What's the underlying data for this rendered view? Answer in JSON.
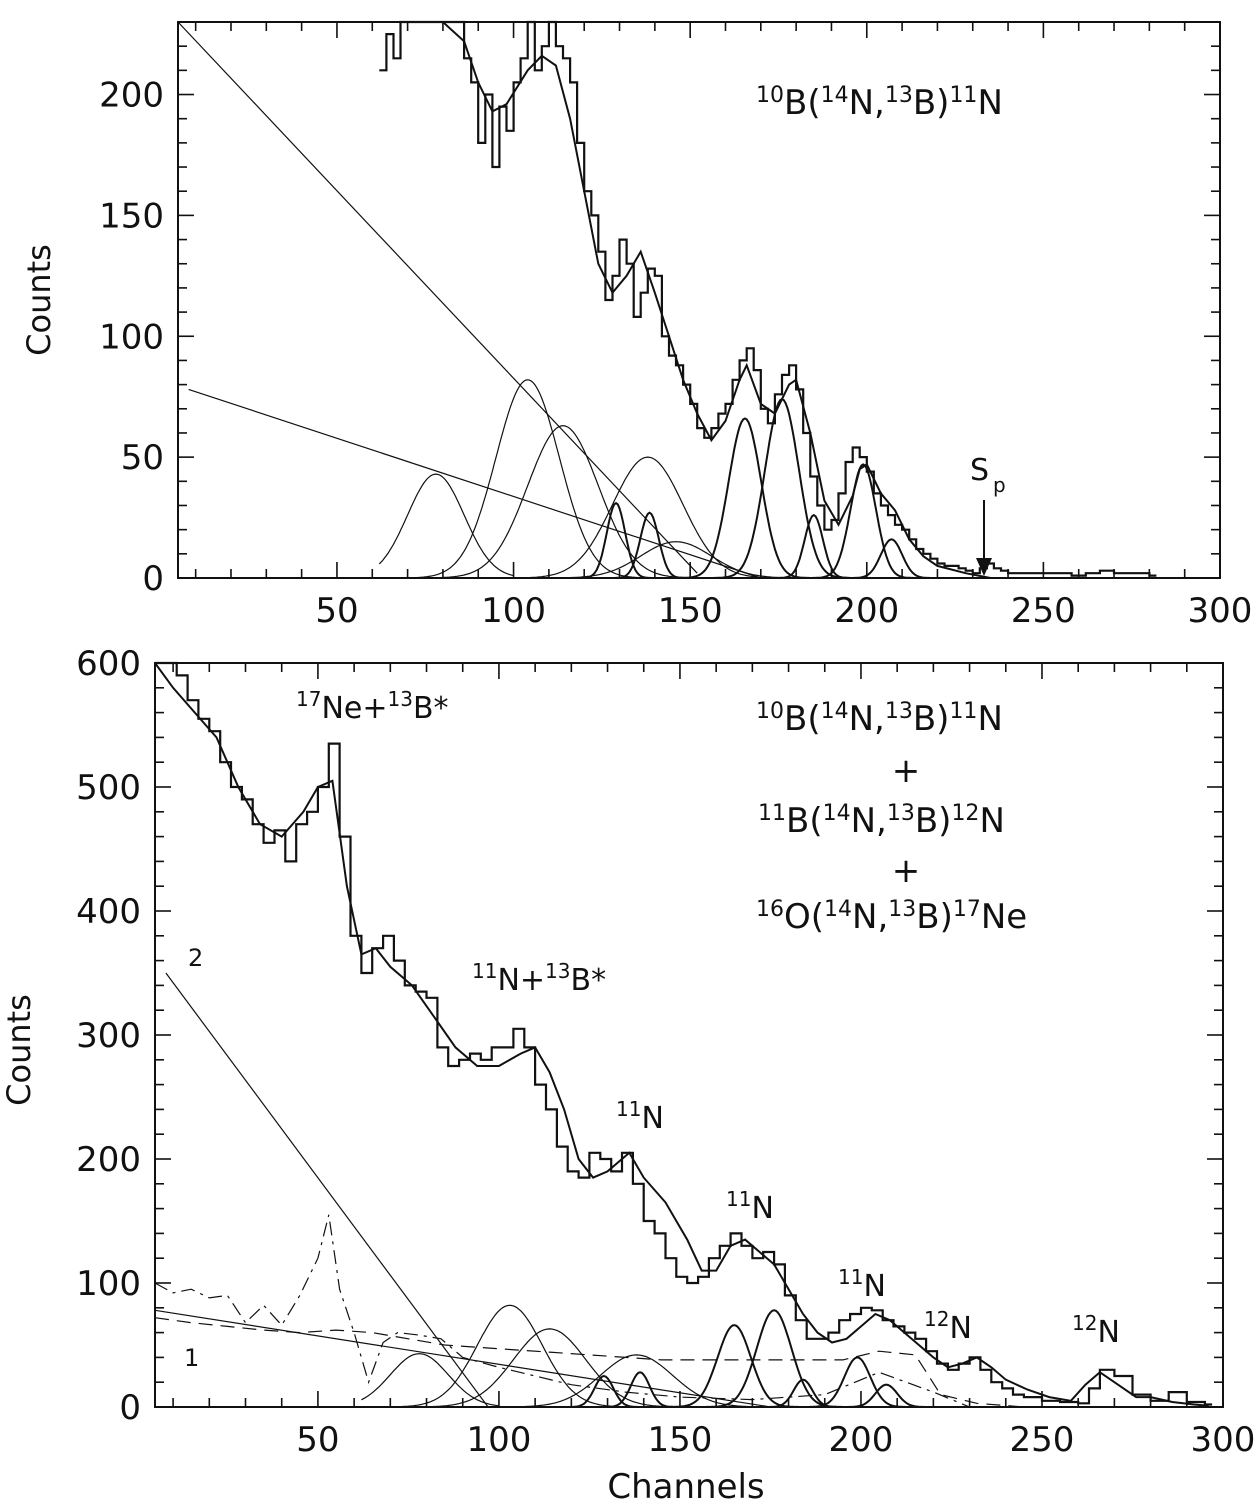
{
  "chart_data": [
    {
      "type": "line",
      "panel": "top",
      "xlabel": "",
      "ylabel": "Counts",
      "xlim": [
        5,
        300
      ],
      "ylim": [
        0,
        230
      ],
      "xticks": [
        50,
        100,
        150,
        200,
        250,
        300
      ],
      "yticks": [
        0,
        50,
        100,
        150,
        200
      ],
      "reaction_label": {
        "a": "10",
        "b": "B(",
        "c": "14",
        "d": "N,",
        "e": "13",
        "f": "B)",
        "g": "11",
        "h": "N"
      },
      "annotation_sp": {
        "s": "S",
        "sub": "p",
        "x": 233
      },
      "histogram": {
        "x": [
          62,
          64,
          66,
          68,
          70,
          72,
          74,
          76,
          78,
          80,
          82,
          84,
          86,
          88,
          90,
          92,
          94,
          96,
          98,
          100,
          102,
          104,
          106,
          108,
          110,
          112,
          114,
          116,
          118,
          120,
          122,
          124,
          126,
          128,
          130,
          132,
          134,
          136,
          138,
          140,
          142,
          144,
          146,
          148,
          150,
          152,
          154,
          156,
          158,
          160,
          162,
          164,
          166,
          168,
          170,
          172,
          174,
          176,
          178,
          180,
          182,
          184,
          186,
          188,
          190,
          192,
          194,
          196,
          198,
          200,
          202,
          204,
          206,
          208,
          210,
          212,
          214,
          216,
          218,
          220,
          222,
          224,
          226,
          228,
          230,
          232,
          234,
          236,
          238,
          240,
          244,
          258,
          262,
          266,
          270,
          274,
          280
        ],
        "y": [
          210,
          225,
          215,
          230,
          230,
          230,
          230,
          230,
          230,
          230,
          230,
          230,
          215,
          205,
          180,
          200,
          170,
          195,
          185,
          205,
          215,
          230,
          210,
          220,
          230,
          220,
          215,
          205,
          180,
          160,
          150,
          135,
          115,
          125,
          140,
          130,
          108,
          118,
          128,
          125,
          100,
          92,
          88,
          80,
          72,
          62,
          58,
          62,
          68,
          72,
          82,
          90,
          95,
          86,
          70,
          64,
          76,
          84,
          88,
          78,
          60,
          42,
          30,
          20,
          24,
          35,
          48,
          54,
          50,
          44,
          35,
          30,
          26,
          22,
          20,
          16,
          12,
          10,
          8,
          6,
          5,
          5,
          4,
          3,
          2,
          4,
          6,
          4,
          3,
          2,
          2,
          1,
          2,
          3,
          2,
          2,
          1
        ]
      },
      "envelope": {
        "x": [
          62,
          70,
          80,
          86,
          90,
          94,
          98,
          104,
          108,
          112,
          116,
          120,
          124,
          128,
          132,
          136,
          140,
          144,
          148,
          152,
          156,
          160,
          164,
          166,
          170,
          174,
          178,
          180,
          184,
          188,
          192,
          196,
          198,
          200,
          204,
          208,
          212,
          216,
          220,
          228,
          235
        ],
        "y": [
          230,
          230,
          230,
          222,
          205,
          193,
          196,
          210,
          216,
          212,
          190,
          160,
          130,
          118,
          125,
          135,
          118,
          100,
          82,
          68,
          57,
          65,
          82,
          88,
          72,
          68,
          80,
          82,
          60,
          32,
          22,
          34,
          45,
          47,
          35,
          28,
          16,
          9,
          5,
          2,
          0
        ]
      },
      "components": [
        {
          "kind": "line",
          "x": [
            5,
            152
          ],
          "y": [
            230,
            2
          ]
        },
        {
          "kind": "line",
          "x": [
            8,
            170
          ],
          "y": [
            78,
            0
          ]
        },
        {
          "kind": "gauss",
          "center": 78,
          "amp": 43,
          "sigma": 8,
          "xmin": 62,
          "xmax": 100
        },
        {
          "kind": "gauss",
          "center": 104,
          "amp": 82,
          "sigma": 9
        },
        {
          "kind": "gauss",
          "center": 114,
          "amp": 63,
          "sigma": 10
        },
        {
          "kind": "gauss",
          "center": 138,
          "amp": 50,
          "sigma": 10
        },
        {
          "kind": "gauss",
          "center": 146,
          "amp": 15,
          "sigma": 10
        },
        {
          "kind": "gauss",
          "center": 129,
          "amp": 31,
          "sigma": 2.6
        },
        {
          "kind": "gauss",
          "center": 138.5,
          "amp": 27,
          "sigma": 2.6
        },
        {
          "kind": "gauss",
          "center": 165.5,
          "amp": 66,
          "sigma": 4.6
        },
        {
          "kind": "gauss",
          "center": 176,
          "amp": 74,
          "sigma": 4.8
        },
        {
          "kind": "gauss",
          "center": 185,
          "amp": 26,
          "sigma": 2.6
        },
        {
          "kind": "gauss",
          "center": 199,
          "amp": 47,
          "sigma": 3.6
        },
        {
          "kind": "gauss",
          "center": 207,
          "amp": 16,
          "sigma": 3
        }
      ]
    },
    {
      "type": "line",
      "panel": "bottom",
      "xlabel": "Channels",
      "ylabel": "Counts",
      "xlim": [
        5,
        300
      ],
      "ylim": [
        0,
        600
      ],
      "xticks": [
        50,
        100,
        150,
        200,
        250,
        300
      ],
      "yticks": [
        0,
        100,
        200,
        300,
        400,
        500,
        600
      ],
      "reaction_labels": {
        "r1": {
          "a": "10",
          "b": "B(",
          "c": "14",
          "d": "N,",
          "e": "13",
          "f": "B)",
          "g": "11",
          "h": "N"
        },
        "plus1": "+",
        "r2": {
          "a": "11",
          "b": "B(",
          "c": "14",
          "d": "N,",
          "e": "13",
          "f": "B)",
          "g": "12",
          "h": "N"
        },
        "plus2": "+",
        "r3": {
          "a": "16",
          "b": "O(",
          "c": "14",
          "d": "N,",
          "e": "13",
          "f": "B)",
          "g": "17",
          "h": "Ne"
        }
      },
      "peak_labels": {
        "ne_b": {
          "s1": "17",
          "t1": "Ne+",
          "s2": "13",
          "t2": "B*"
        },
        "n_b": {
          "s1": "11",
          "t1": "N+",
          "s2": "13",
          "t2": "B*"
        },
        "n11_a": {
          "sup": "11",
          "base": "N"
        },
        "n11_b": {
          "sup": "11",
          "base": "N"
        },
        "n11_c": {
          "sup": "11",
          "base": "N"
        },
        "n12_a": {
          "sup": "12",
          "base": "N"
        },
        "n12_b": {
          "sup": "12",
          "base": "N"
        }
      },
      "curve_labels": {
        "one": "1",
        "two": "2"
      },
      "histogram": {
        "x": [
          5,
          8,
          11,
          14,
          17,
          20,
          23,
          26,
          29,
          32,
          35,
          38,
          41,
          44,
          47,
          50,
          53,
          56,
          59,
          62,
          65,
          68,
          71,
          74,
          77,
          80,
          83,
          86,
          89,
          92,
          95,
          98,
          101,
          104,
          107,
          110,
          113,
          116,
          119,
          122,
          125,
          128,
          131,
          134,
          137,
          140,
          143,
          146,
          149,
          152,
          155,
          158,
          161,
          164,
          167,
          170,
          173,
          176,
          179,
          182,
          185,
          188,
          191,
          194,
          197,
          200,
          203,
          206,
          209,
          212,
          215,
          218,
          221,
          224,
          227,
          230,
          233,
          236,
          239,
          242,
          245,
          250,
          255,
          260,
          263,
          266,
          270,
          275,
          280,
          285,
          290,
          295
        ],
        "y": [
          610,
          600,
          590,
          570,
          555,
          545,
          520,
          500,
          490,
          470,
          455,
          465,
          440,
          470,
          480,
          500,
          535,
          460,
          380,
          350,
          370,
          380,
          360,
          340,
          335,
          330,
          290,
          275,
          280,
          285,
          280,
          290,
          290,
          305,
          290,
          260,
          240,
          210,
          190,
          185,
          205,
          200,
          190,
          205,
          180,
          150,
          140,
          120,
          105,
          100,
          105,
          120,
          130,
          140,
          130,
          120,
          125,
          115,
          90,
          70,
          55,
          55,
          60,
          70,
          75,
          80,
          78,
          70,
          65,
          60,
          55,
          45,
          35,
          30,
          35,
          40,
          30,
          20,
          15,
          10,
          8,
          5,
          4,
          3,
          15,
          30,
          25,
          10,
          5,
          12,
          4,
          2
        ]
      },
      "envelope": {
        "x": [
          5,
          10,
          16,
          22,
          28,
          34,
          40,
          46,
          50,
          54,
          58,
          62,
          66,
          70,
          76,
          82,
          88,
          94,
          100,
          106,
          110,
          114,
          118,
          122,
          126,
          130,
          136,
          140,
          146,
          152,
          156,
          160,
          164,
          168,
          172,
          176,
          180,
          184,
          188,
          192,
          196,
          200,
          204,
          208,
          212,
          216,
          220,
          224,
          228,
          232,
          236,
          240,
          246,
          252,
          258,
          262,
          266,
          270,
          276,
          280,
          286,
          292,
          296
        ],
        "y": [
          600,
          580,
          560,
          540,
          500,
          470,
          460,
          480,
          500,
          505,
          420,
          365,
          370,
          355,
          340,
          315,
          290,
          275,
          275,
          285,
          290,
          270,
          240,
          200,
          185,
          190,
          205,
          185,
          165,
          135,
          110,
          110,
          130,
          135,
          125,
          115,
          95,
          75,
          60,
          52,
          55,
          65,
          75,
          70,
          60,
          50,
          40,
          32,
          35,
          40,
          32,
          22,
          14,
          8,
          5,
          18,
          28,
          20,
          8,
          8,
          4,
          2,
          1
        ]
      },
      "components": [
        {
          "kind": "line",
          "x": [
            8,
            97
          ],
          "y": [
            350,
            0
          ]
        },
        {
          "kind": "line",
          "x": [
            5,
            175
          ],
          "y": [
            78,
            0
          ]
        },
        {
          "kind": "dashed",
          "x": [
            5,
            15,
            25,
            35,
            45,
            55,
            65,
            75,
            85,
            95,
            105,
            115,
            125,
            135,
            145,
            155,
            165,
            175,
            185,
            195,
            205,
            215,
            222,
            232,
            245
          ],
          "y": [
            72,
            68,
            65,
            62,
            60,
            62,
            60,
            55,
            50,
            48,
            46,
            44,
            42,
            40,
            38,
            38,
            38,
            38,
            38,
            38,
            45,
            42,
            10,
            3,
            0
          ]
        },
        {
          "kind": "dashdot",
          "x": [
            5,
            10,
            15,
            20,
            25,
            30,
            35,
            40,
            45,
            50,
            53,
            56,
            60,
            64,
            68,
            72,
            78,
            84,
            90,
            100,
            110,
            120,
            135,
            150,
            170,
            190,
            205,
            220,
            230,
            240
          ],
          "y": [
            100,
            92,
            95,
            88,
            90,
            68,
            82,
            66,
            90,
            120,
            155,
            95,
            60,
            20,
            52,
            60,
            58,
            55,
            40,
            32,
            25,
            18,
            12,
            8,
            6,
            10,
            28,
            12,
            0,
            0
          ]
        },
        {
          "kind": "gauss",
          "center": 78,
          "amp": 43,
          "sigma": 8,
          "xmin": 62,
          "xmax": 100
        },
        {
          "kind": "gauss",
          "center": 103,
          "amp": 82,
          "sigma": 9
        },
        {
          "kind": "gauss",
          "center": 114,
          "amp": 63,
          "sigma": 10
        },
        {
          "kind": "gauss",
          "center": 138,
          "amp": 42,
          "sigma": 10
        },
        {
          "kind": "gauss",
          "center": 129,
          "amp": 25,
          "sigma": 2.6
        },
        {
          "kind": "gauss",
          "center": 139,
          "amp": 28,
          "sigma": 2.6
        },
        {
          "kind": "gauss",
          "center": 165,
          "amp": 66,
          "sigma": 4.6
        },
        {
          "kind": "gauss",
          "center": 176,
          "amp": 78,
          "sigma": 4.8
        },
        {
          "kind": "gauss",
          "center": 184,
          "amp": 22,
          "sigma": 2.6
        },
        {
          "kind": "gauss",
          "center": 199,
          "amp": 40,
          "sigma": 3.6
        },
        {
          "kind": "gauss",
          "center": 207,
          "amp": 18,
          "sigma": 3
        }
      ]
    }
  ]
}
